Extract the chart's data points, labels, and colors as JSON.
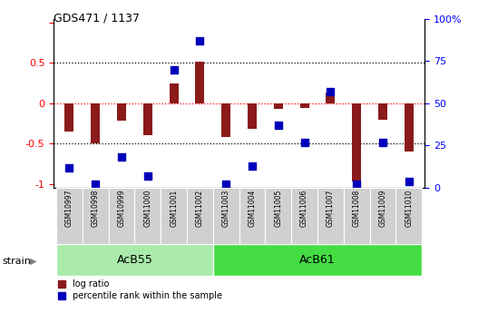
{
  "title": "GDS471 / 1137",
  "samples": [
    "GSM10997",
    "GSM10998",
    "GSM10999",
    "GSM11000",
    "GSM11001",
    "GSM11002",
    "GSM11003",
    "GSM11004",
    "GSM11005",
    "GSM11006",
    "GSM11007",
    "GSM11008",
    "GSM11009",
    "GSM11010"
  ],
  "log_ratio": [
    -0.35,
    -0.5,
    -0.22,
    -0.4,
    0.25,
    0.52,
    -0.42,
    -0.32,
    -0.07,
    -0.06,
    0.13,
    -0.97,
    -0.2,
    -0.6
  ],
  "percentile": [
    12,
    2,
    18,
    7,
    70,
    87,
    2,
    13,
    37,
    27,
    57,
    2,
    27,
    4
  ],
  "groups": [
    {
      "label": "AcB55",
      "start": 0,
      "end": 5,
      "color": "#AAEAAA"
    },
    {
      "label": "AcB61",
      "start": 6,
      "end": 13,
      "color": "#44DD44"
    }
  ],
  "group_label": "strain",
  "ylim_left": [
    -1.05,
    1.05
  ],
  "yticks_left": [
    -1,
    -0.5,
    0,
    0.5,
    1
  ],
  "ytick_labels_left": [
    "-1",
    "-0.5",
    "0",
    "0.5",
    ""
  ],
  "yticks_right_vals": [
    0,
    25,
    50,
    75,
    100
  ],
  "ytick_labels_right": [
    "0",
    "25",
    "50",
    "75",
    "100%"
  ],
  "bar_color": "#8B1A1A",
  "dot_color": "#0000BB",
  "plot_bg": "#FFFFFF",
  "fig_bg": "#FFFFFF",
  "bar_width": 0.35,
  "dot_size": 30
}
